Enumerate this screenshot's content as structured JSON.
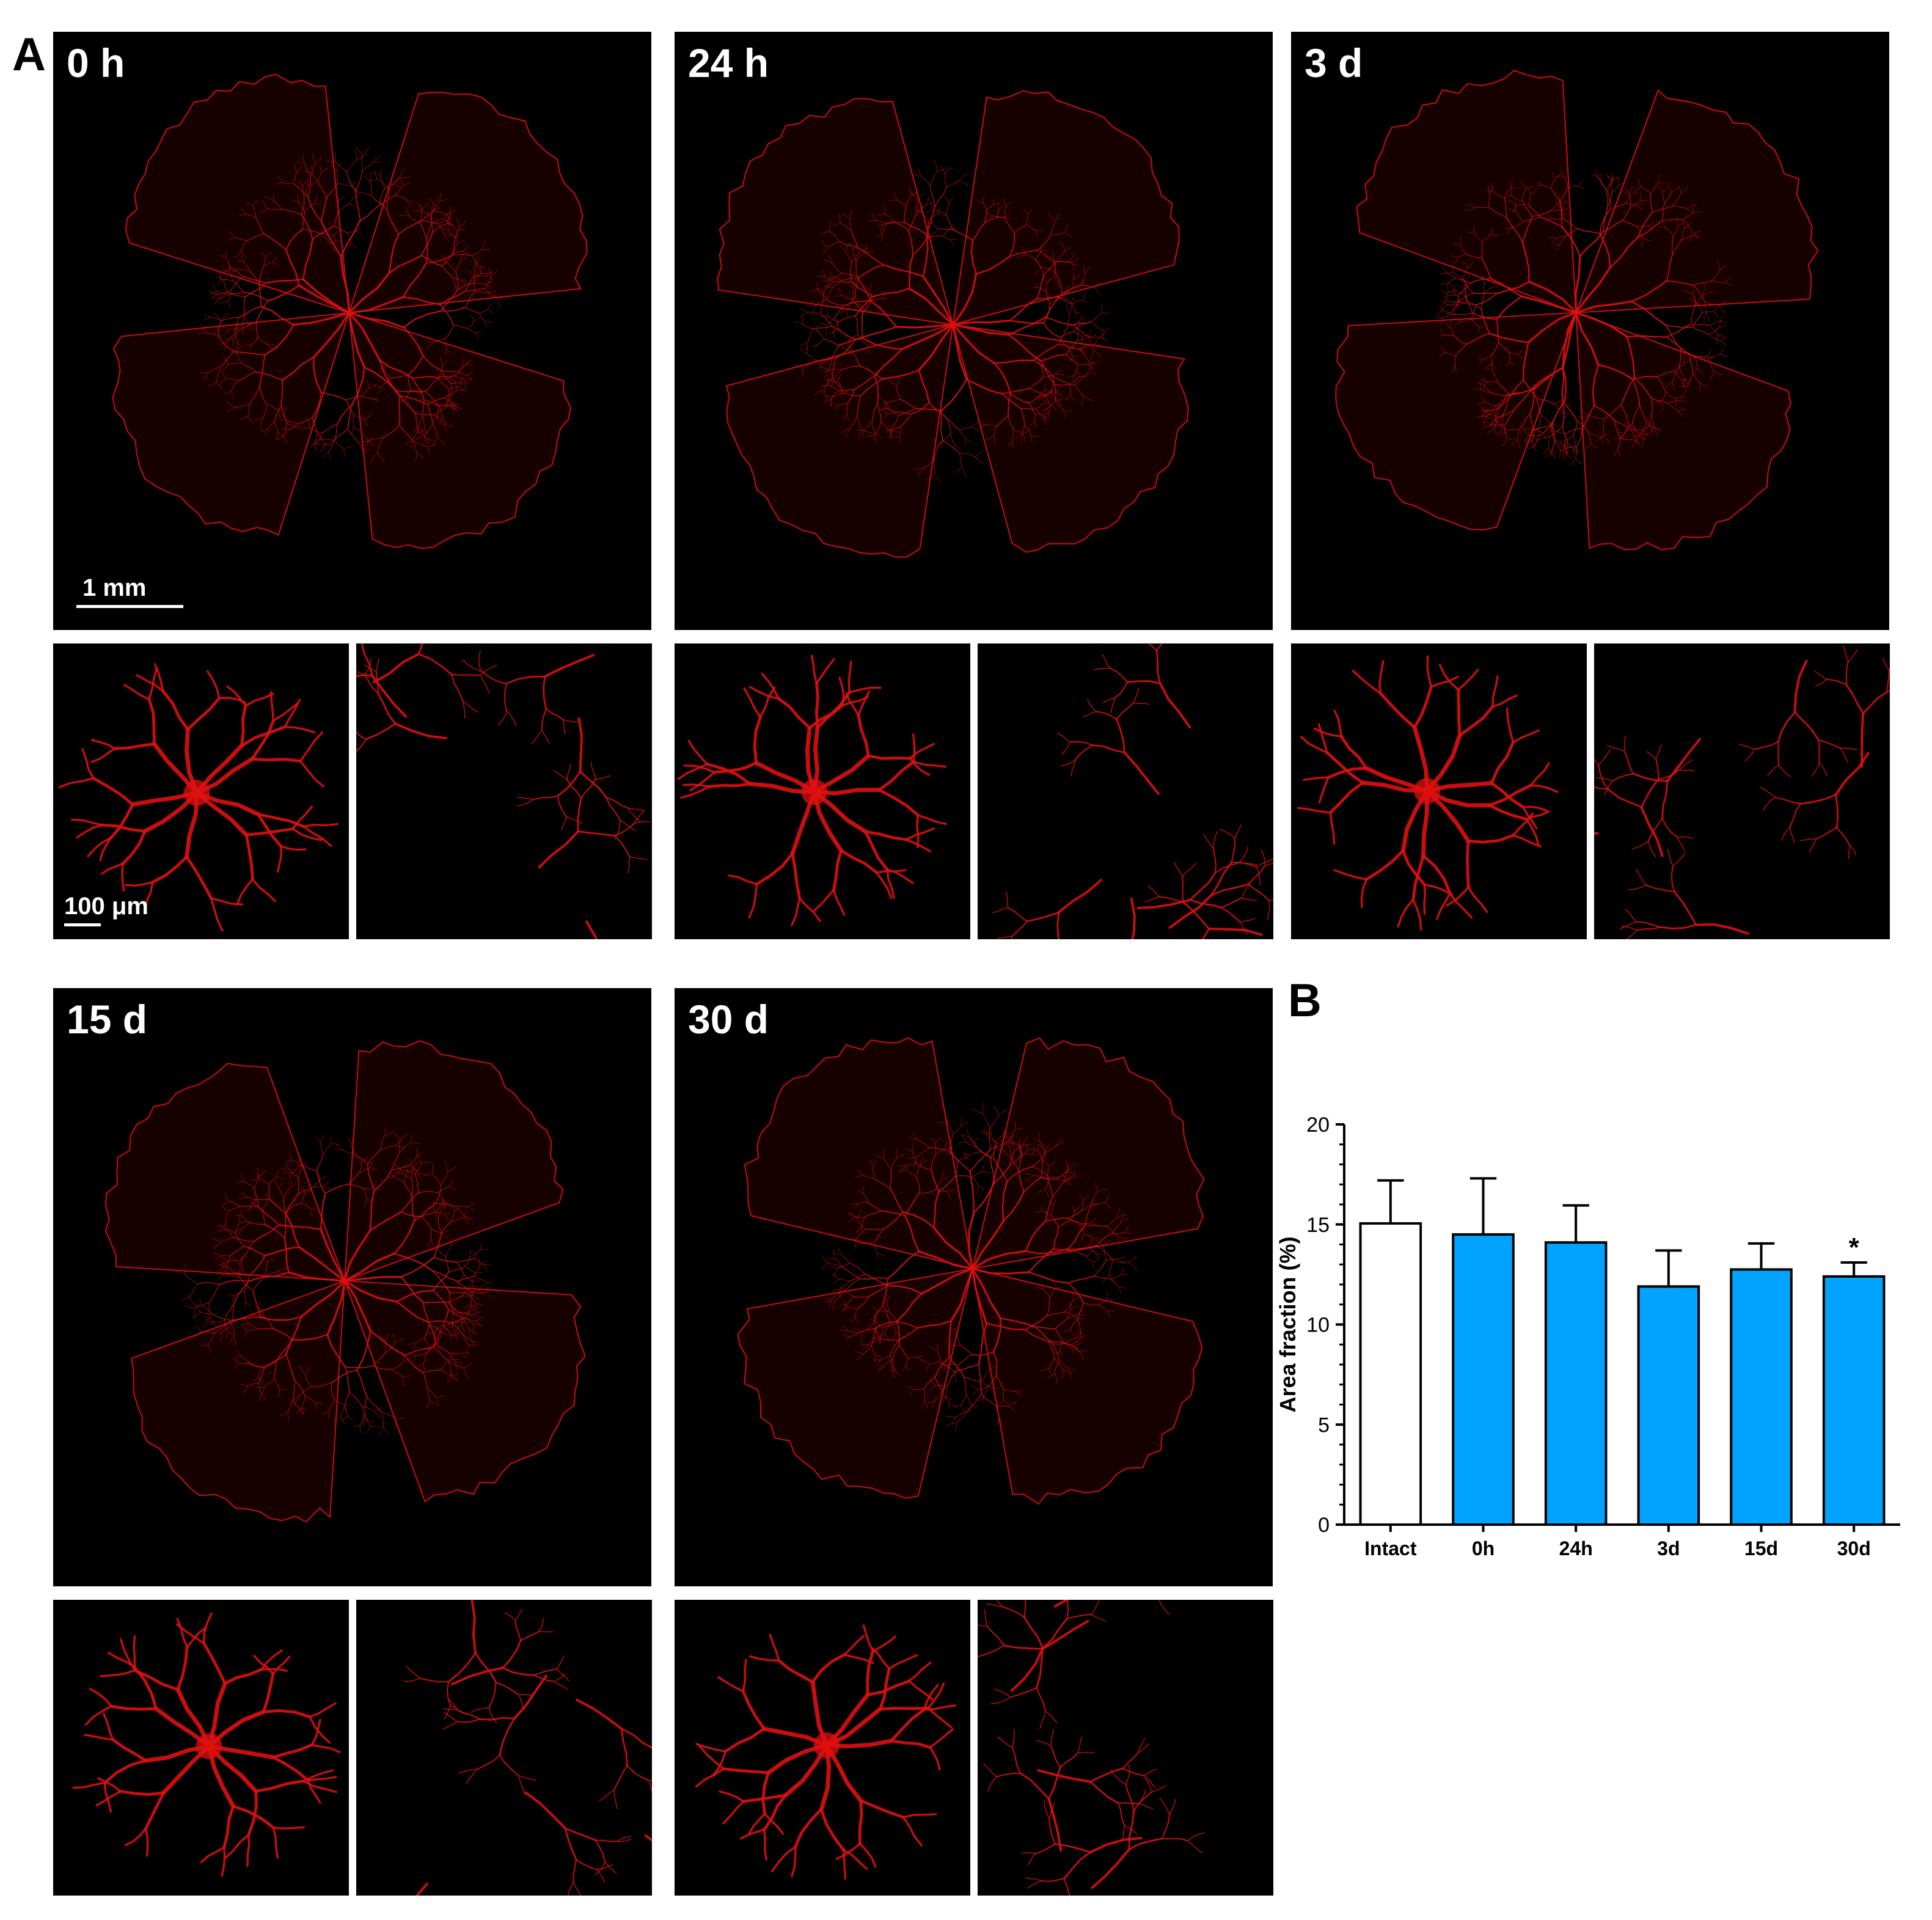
{
  "figure": {
    "panel_a_letter": "A",
    "panel_b_letter": "B",
    "scale_large": "1 mm",
    "scale_small": "100  μm",
    "timepoints": [
      "0 h",
      "24 h",
      "3 d",
      "15 d",
      "30 d"
    ]
  },
  "colors": {
    "vessel": "#e01010",
    "image_background": "#000000",
    "bar_control": "#ffffff",
    "bar_treated": "#00a3ff"
  },
  "chart_data": {
    "type": "bar",
    "title": "",
    "xlabel": "",
    "ylabel": "Area fraction (%)",
    "ylim": [
      0,
      20
    ],
    "yticks": [
      0,
      5,
      10,
      15,
      20
    ],
    "categories": [
      "Intact",
      "0h",
      "24h",
      "3d",
      "15d",
      "30d"
    ],
    "values": [
      15.05,
      14.5,
      14.1,
      11.9,
      12.75,
      12.4
    ],
    "errors": [
      2.15,
      2.8,
      1.85,
      1.8,
      1.3,
      0.7
    ],
    "annotations": [
      "",
      "",
      "",
      "",
      "",
      "*"
    ],
    "bar_colors": [
      "#ffffff",
      "#00a3ff",
      "#00a3ff",
      "#00a3ff",
      "#00a3ff",
      "#00a3ff"
    ],
    "grid": false,
    "legend": "none"
  }
}
